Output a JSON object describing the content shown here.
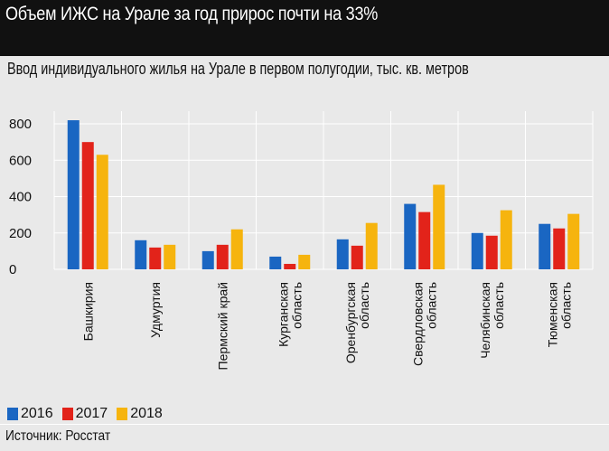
{
  "header": {
    "title": "Объем ИЖС на Урале за год прирос почти на 33%"
  },
  "chart_data": {
    "type": "bar",
    "title": "Ввод индивидуального жилья на Урале в первом полугодии, тыс. кв. метров",
    "xlabel": "",
    "ylabel": "",
    "ylim": [
      0,
      850
    ],
    "yticks": [
      0,
      200,
      400,
      600,
      800
    ],
    "grid": true,
    "legend_position": "bottom-left",
    "categories": [
      [
        "Башкирия"
      ],
      [
        "Удмуртия"
      ],
      [
        "Пермский край"
      ],
      [
        "Курганская",
        "область"
      ],
      [
        "Оренбургская",
        "область"
      ],
      [
        "Свердловская",
        "область"
      ],
      [
        "Челябинская",
        "область"
      ],
      [
        "Тюменская",
        "область"
      ]
    ],
    "series": [
      {
        "name": "2016",
        "color": "#1a66c2",
        "values": [
          820,
          160,
          100,
          70,
          165,
          360,
          200,
          250
        ]
      },
      {
        "name": "2017",
        "color": "#e2231a",
        "values": [
          700,
          120,
          135,
          30,
          130,
          315,
          185,
          225
        ]
      },
      {
        "name": "2018",
        "color": "#f6b40e",
        "values": [
          630,
          135,
          220,
          80,
          255,
          465,
          325,
          305
        ]
      }
    ]
  },
  "footer": {
    "source": "Источник: Росстат"
  }
}
